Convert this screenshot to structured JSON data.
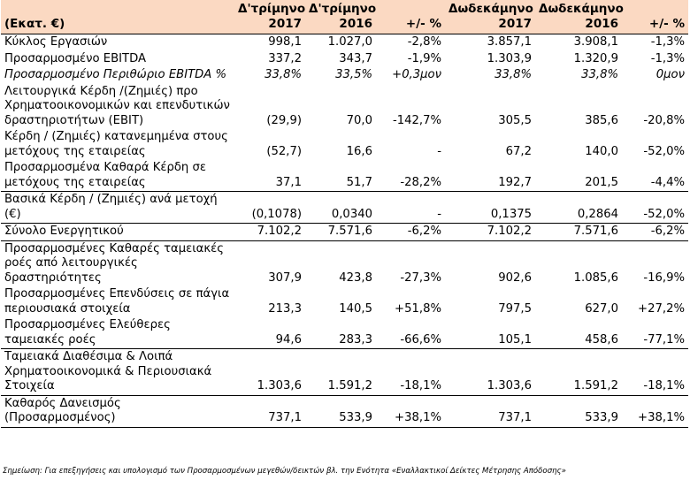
{
  "header": {
    "label": "(Εκατ. €)",
    "q2017": "Δ'τρίμηνο 2017",
    "q2016": "Δ'τρίμηνο 2016",
    "q_change": "+/- %",
    "y2017": "Δωδεκάμηνο 2017",
    "y2016": "Δωδεκάμηνο 2016",
    "y_change": "+/- %"
  },
  "rows": [
    {
      "label": "Κύκλος Εργασιών",
      "q2017": "998,1",
      "q2016": "1.027,0",
      "qc": "-2,8%",
      "y2017": "3.857,1",
      "y2016": "3.908,1",
      "yc": "-1,3%"
    },
    {
      "label": "Προσαρμοσμένο EBITDA",
      "q2017": "337,2",
      "q2016": "343,7",
      "qc": "-1,9%",
      "y2017": "1.303,9",
      "y2016": "1.320,9",
      "yc": "-1,3%"
    },
    {
      "label": "Προσαρμοσμένο Περιθώριο EBITDA %",
      "q2017": "33,8%",
      "q2016": "33,5%",
      "qc": "+0,3μον",
      "y2017": "33,8%",
      "y2016": "33,8%",
      "yc": "0μον"
    },
    {
      "label": "Λειτουργικά Κέρδη /(Ζημιές) προ Χρηματοοικονομικών και επενδυτικών δραστηριοτήτων (EBIT)",
      "q2017": "(29,9)",
      "q2016": "70,0",
      "qc": "-142,7%",
      "y2017": "305,5",
      "y2016": "385,6",
      "yc": "-20,8%"
    },
    {
      "label": "Κέρδη / (Ζημιές) κατανεμημένα στους μετόχους της εταιρείας",
      "q2017": "(52,7)",
      "q2016": "16,6",
      "qc": "-",
      "y2017": "67,2",
      "y2016": "140,0",
      "yc": "-52,0%"
    },
    {
      "label": "Προσαρμοσμένα Καθαρά Κέρδη σε μετόχους της εταιρείας",
      "q2017": "37,1",
      "q2016": "51,7",
      "qc": "-28,2%",
      "y2017": "192,7",
      "y2016": "201,5",
      "yc": "-4,4%"
    },
    {
      "label": "Βασικά Κέρδη / (Ζημιές) ανά μετοχή (€)",
      "q2017": "(0,1078)",
      "q2016": "0,0340",
      "qc": "-",
      "y2017": "0,1375",
      "y2016": "0,2864",
      "yc": "-52,0%"
    },
    {
      "label": "Σύνολο Ενεργητικού",
      "q2017": "7.102,2",
      "q2016": "7.571,6",
      "qc": "-6,2%",
      "y2017": "7.102,2",
      "y2016": "7.571,6",
      "yc": "-6,2%"
    },
    {
      "label": "Προσαρμοσμένες Καθαρές ταμειακές ροές από λειτουργικές δραστηριότητες",
      "q2017": "307,9",
      "q2016": "423,8",
      "qc": "-27,3%",
      "y2017": "902,6",
      "y2016": "1.085,6",
      "yc": "-16,9%"
    },
    {
      "label": "Προσαρμοσμένες Επενδύσεις σε πάγια περιουσιακά στοιχεία",
      "q2017": "213,3",
      "q2016": "140,5",
      "qc": "+51,8%",
      "y2017": "797,5",
      "y2016": "627,0",
      "yc": "+27,2%"
    },
    {
      "label": "Προσαρμοσμένες Ελεύθερες ταμειακές ροές",
      "q2017": "94,6",
      "q2016": "283,3",
      "qc": "-66,6%",
      "y2017": "105,1",
      "y2016": "458,6",
      "yc": "-77,1%"
    },
    {
      "label": "Ταμειακά Διαθέσιμα & Λοιπά Χρηματοοικονομικά & Περιουσιακά Στοιχεία",
      "q2017": "1.303,6",
      "q2016": "1.591,2",
      "qc": "-18,1%",
      "y2017": "1.303,6",
      "y2016": "1.591,2",
      "yc": "-18,1%"
    },
    {
      "label": "Καθαρός Δανεισμός (Προσαρμοσμένος)",
      "q2017": "737,1",
      "q2016": "533,9",
      "qc": "+38,1%",
      "y2017": "737,1",
      "y2016": "533,9",
      "yc": "+38,1%"
    }
  ],
  "note": "Σημείωση: Για επεξηγήσεις και υπολογισμό των Προσαρμοσμένων μεγεθών/δεικτών βλ. την Ενότητα «Εναλλακτικοί Δείκτες Μέτρησης Απόδοσης»",
  "colors": {
    "header_bg": "#fbd9c2",
    "rule": "#000000"
  }
}
